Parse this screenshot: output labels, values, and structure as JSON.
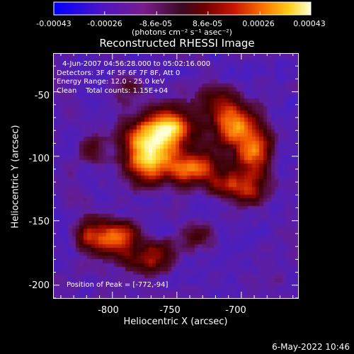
{
  "colorbar": {
    "tick_labels": [
      "-0.00043",
      "-0.00026",
      "-8.6e-05",
      "8.6e-05",
      "0.00026",
      "0.00043"
    ],
    "ticks": [
      -0.00043,
      -0.00026,
      -8.6e-05,
      8.6e-05,
      0.00026,
      0.00043
    ],
    "range": [
      -0.00043,
      0.00043
    ],
    "units": "(photons cm⁻² s⁻¹ asec⁻²)"
  },
  "image": {
    "title": "Reconstructed RHESSI Image",
    "annotations": [
      "4-Jun-2007 04:56:28.000 to 05:02:16.000",
      "Detectors: 3F 4F 5F 6F 7F 8F, Att 0",
      "Energy Range: 12.0 - 25.0 keV",
      "Clean    Total counts: 1.15E+04"
    ],
    "peak_label": "Position of Peak = [-772,-94]",
    "xlabel": "Heliocentric X (arcsec)",
    "ylabel": "Heliocentric Y (arcsec)",
    "xlim": [
      -846,
      -656
    ],
    "ylim": [
      -210,
      -20
    ],
    "xticks": [
      -800,
      -750,
      -700
    ],
    "yticks": [
      -50,
      -100,
      -150,
      -200
    ],
    "sources": [
      {
        "x": -772,
        "y": -94,
        "sx": 13,
        "sy": 17,
        "amp": 1.0
      },
      {
        "x": -752,
        "y": -78,
        "sx": 11,
        "sy": 10,
        "amp": 0.72
      },
      {
        "x": -738,
        "y": -110,
        "sx": 16,
        "sy": 9,
        "amp": 0.66
      },
      {
        "x": -706,
        "y": -76,
        "sx": 13,
        "sy": 12,
        "amp": 0.75
      },
      {
        "x": -690,
        "y": -100,
        "sx": 10,
        "sy": 14,
        "amp": 0.6
      },
      {
        "x": -700,
        "y": -125,
        "sx": 14,
        "sy": 8,
        "amp": 0.48
      },
      {
        "x": -812,
        "y": -162,
        "sx": 12,
        "sy": 9,
        "amp": 0.55
      },
      {
        "x": -792,
        "y": -165,
        "sx": 9,
        "sy": 10,
        "amp": 0.5
      },
      {
        "x": -768,
        "y": -178,
        "sx": 12,
        "sy": 9,
        "amp": 0.42
      },
      {
        "x": -735,
        "y": -162,
        "sx": 10,
        "sy": 8,
        "amp": 0.32
      },
      {
        "x": -815,
        "y": -95,
        "sx": 8,
        "sy": 8,
        "amp": 0.22
      },
      {
        "x": -720,
        "y": -55,
        "sx": 9,
        "sy": 8,
        "amp": 0.28
      },
      {
        "x": -790,
        "y": -45,
        "sx": 10,
        "sy": 8,
        "amp": 0.2
      }
    ]
  },
  "footer": {
    "date": "6-May-2022 10:46"
  }
}
